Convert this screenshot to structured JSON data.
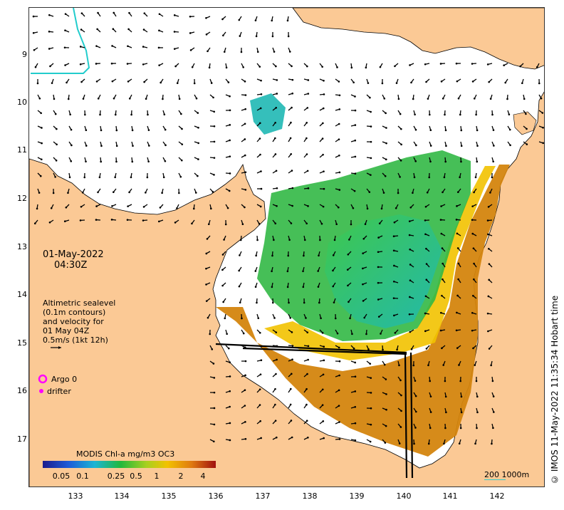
{
  "map": {
    "date": "01-May-2022",
    "time": "04:30Z",
    "altimetry_text": [
      "Altimetric sealevel",
      "(0.1m contours)",
      "and velocity for",
      "01 May 04Z",
      "0.5m/s (1kt 12h)"
    ],
    "legend": {
      "argo_label": "Argo 0",
      "drifter_label": "drifter"
    },
    "colorbar": {
      "title": "MODIS Chl-a mg/m3 OC3",
      "ticks": [
        "0.05",
        "0.1",
        "0.25",
        "0.5",
        "1",
        "2",
        "4"
      ]
    },
    "scale_label": "200  1000m",
    "credit": "© IMOS 11-May-2022 11:35:34 Hobart time",
    "lat_ticks": [
      "9",
      "10",
      "11",
      "12",
      "13",
      "14",
      "15",
      "16",
      "17"
    ],
    "lon_ticks": [
      "133",
      "134",
      "135",
      "136",
      "137",
      "138",
      "139",
      "140",
      "141",
      "142"
    ],
    "colors": {
      "land": "#fbc995",
      "ocean": "#ffffff",
      "chl_low": "#1fb8b4",
      "chl_mid": "#22b64a",
      "chl_high": "#f0b000",
      "chl_max": "#c44a10",
      "argo": "#ff00ff",
      "coastline": "#000000",
      "eez": "#22cccc"
    }
  }
}
